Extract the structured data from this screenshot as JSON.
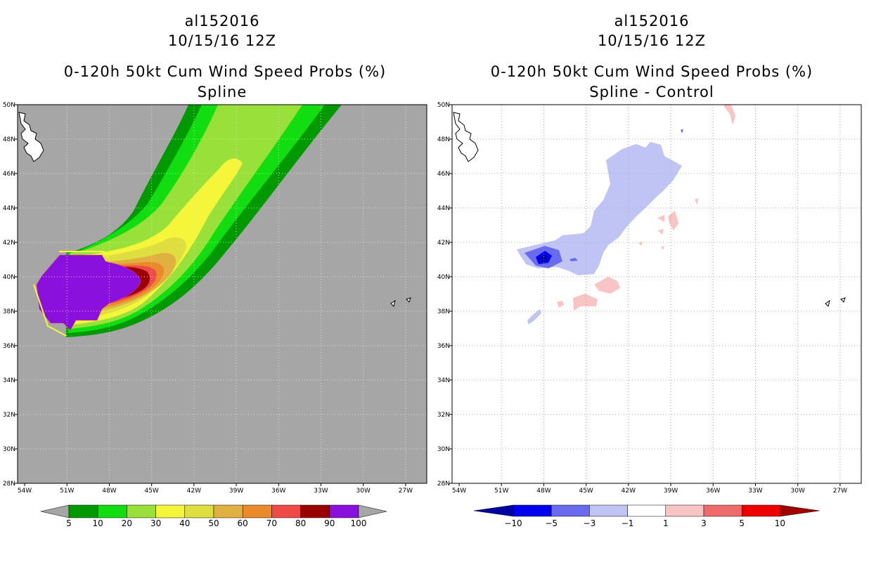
{
  "chart_data": [
    {
      "type": "heatmap",
      "storm_id": "al152016",
      "date": "10/15/16 12Z",
      "title": "0-120h 50kt Cum Wind Speed Probs (%)",
      "subtitle": "Spline",
      "x_ticks": [
        "54W",
        "51W",
        "48W",
        "45W",
        "42W",
        "39W",
        "36W",
        "33W",
        "30W",
        "27W"
      ],
      "y_ticks": [
        "50N",
        "48N",
        "46N",
        "44N",
        "42N",
        "40N",
        "38N",
        "36N",
        "34N",
        "32N",
        "30N",
        "28N"
      ],
      "xlim": [
        -54.5,
        -25.5
      ],
      "ylim": [
        28,
        50
      ],
      "grid": true,
      "colorbar": {
        "labels": [
          "5",
          "10",
          "20",
          "30",
          "40",
          "50",
          "60",
          "70",
          "80",
          "90",
          "100"
        ],
        "colors": [
          "#009900",
          "#11dd11",
          "#99e03a",
          "#f5f53a",
          "#dede40",
          "#e0b040",
          "#ea8a2a",
          "#ef4a4a",
          "#990000",
          "#8a10dd"
        ]
      },
      "background_color": "#a6a6a6"
    },
    {
      "type": "heatmap",
      "storm_id": "al152016",
      "date": "10/15/16 12Z",
      "title": "0-120h 50kt Cum Wind Speed Probs (%)",
      "subtitle": "Spline - Control",
      "x_ticks": [
        "54W",
        "51W",
        "48W",
        "45W",
        "42W",
        "39W",
        "36W",
        "33W",
        "30W",
        "27W"
      ],
      "y_ticks": [
        "50N",
        "48N",
        "46N",
        "44N",
        "42N",
        "40N",
        "38N",
        "36N",
        "34N",
        "32N",
        "30N",
        "28N"
      ],
      "xlim": [
        -54.5,
        -25.5
      ],
      "ylim": [
        28,
        50
      ],
      "grid": true,
      "colorbar": {
        "labels": [
          "−10",
          "−5",
          "−3",
          "−1",
          "1",
          "3",
          "5",
          "10"
        ],
        "colors": [
          "#0000a0",
          "#0000ee",
          "#6a6aee",
          "#c0c4f5",
          "#ffffff",
          "#f8c4c4",
          "#ef6a6a",
          "#ee0000",
          "#a00000"
        ]
      },
      "background_color": "#ffffff"
    }
  ]
}
